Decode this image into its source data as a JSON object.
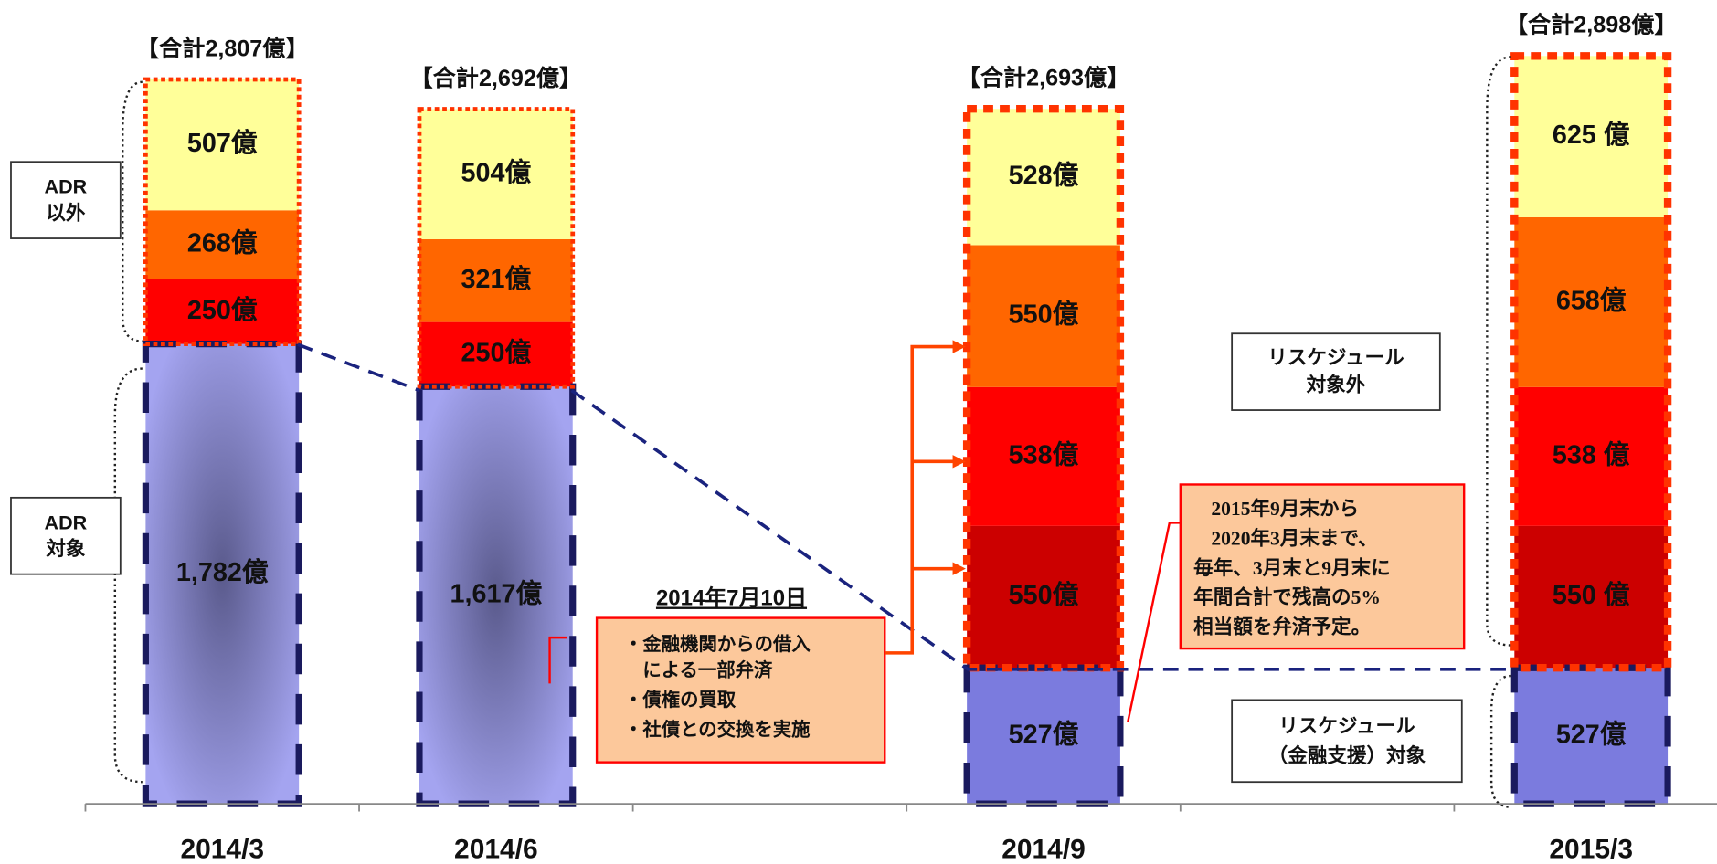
{
  "chart_data": {
    "type": "stacked_bar",
    "categories": [
      "2014/3",
      "2014/6",
      null,
      "2014/9",
      null,
      "2015/3"
    ],
    "series": [
      {
        "color": "#9a9ae8",
        "values": [
          1782,
          1617,
          null,
          527,
          null,
          527
        ],
        "value_labels": [
          "1,782億",
          "1,617億",
          null,
          "527億",
          null,
          "527億"
        ]
      },
      {
        "color": "#cc0000",
        "values": [
          null,
          null,
          null,
          550,
          null,
          550
        ],
        "value_labels": [
          null,
          null,
          null,
          "550億",
          null,
          "550 億"
        ]
      },
      {
        "color": "#ff0000",
        "values": [
          250,
          250,
          null,
          538,
          null,
          538
        ],
        "value_labels": [
          "250億",
          "250億",
          null,
          "538億",
          null,
          "538 億"
        ]
      },
      {
        "color": "#ff6600",
        "values": [
          268,
          321,
          null,
          550,
          null,
          658
        ],
        "value_labels": [
          "268億",
          "321億",
          null,
          "550億",
          null,
          "658億"
        ]
      },
      {
        "color": "#ffff99",
        "values": [
          507,
          504,
          null,
          528,
          null,
          625
        ],
        "value_labels": [
          "507億",
          "504億",
          null,
          "528億",
          null,
          "625 億"
        ]
      }
    ],
    "total_labels": [
      "【合計2,807億】",
      "【合計2,692億】",
      null,
      "【合計2,693億】",
      null,
      "【合計2,898億】"
    ],
    "ylim": [
      0,
      3115
    ],
    "annotations": {
      "adr_other": [
        "ADR",
        "以外"
      ],
      "adr_target": [
        "ADR",
        "対象"
      ],
      "resched_out": [
        "リスケジュール",
        "対象外"
      ],
      "resched_in": [
        "リスケジュール",
        "（金融支援）対象"
      ],
      "date": "2014年7月10日",
      "actions": [
        "・金融機関からの借入",
        "　による一部弁済",
        "・債権の買取",
        "・社債との交換を実施"
      ],
      "note": [
        "2015年9月末から",
        "2020年3月末まで、",
        "毎年、3月末と9月末に",
        "年間合計で残高の5%",
        "相当額を弁済予定。"
      ]
    }
  }
}
